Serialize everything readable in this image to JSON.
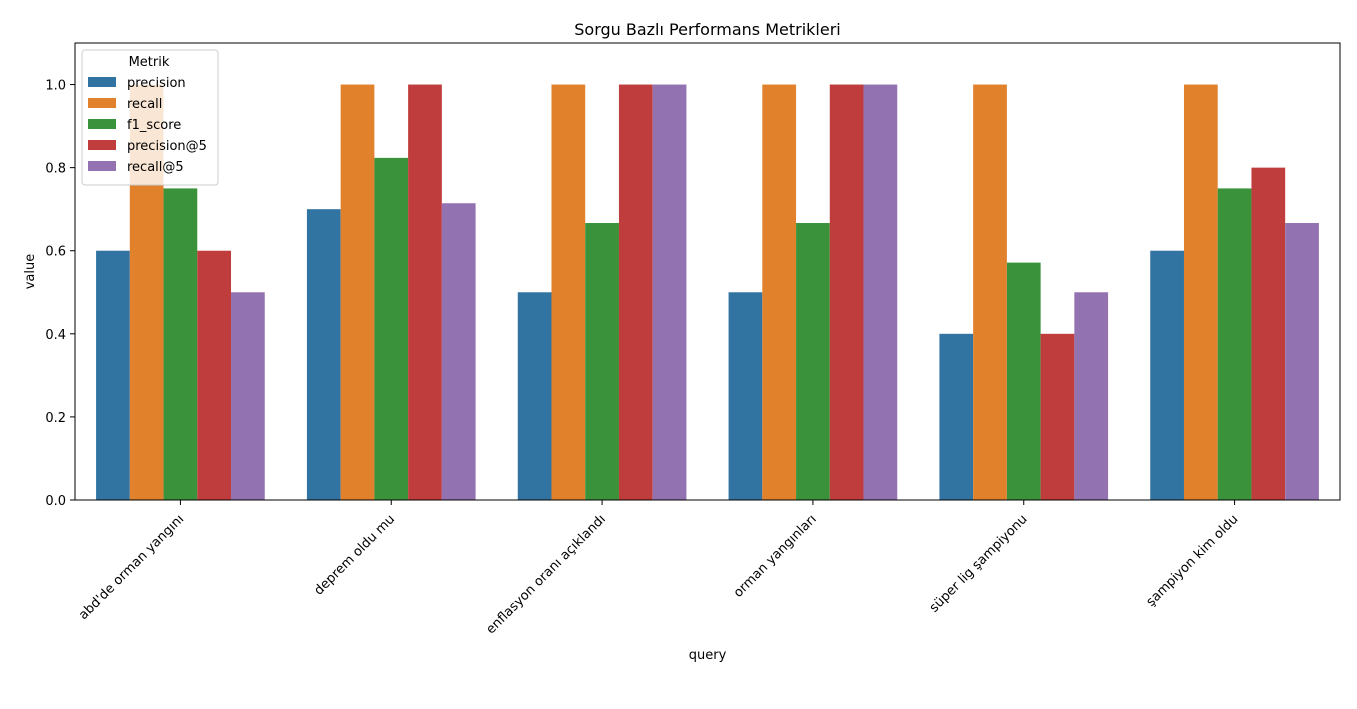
{
  "chart_data": {
    "type": "bar",
    "title": "Sorgu Bazlı Performans Metrikleri",
    "xlabel": "query",
    "ylabel": "value",
    "ylim": [
      0,
      1.1
    ],
    "yticks": [
      "0.0",
      "0.2",
      "0.4",
      "0.6",
      "0.8",
      "1.0"
    ],
    "categories": [
      "abd'de orman yangını",
      "deprem oldu mu",
      "enflasyon oranı açıklandı",
      "orman yangınları",
      "süper lig şampiyonu",
      "şampiyon kim oldu"
    ],
    "series": [
      {
        "name": "precision",
        "color": "#3274a1",
        "values": [
          0.6,
          0.7,
          0.5,
          0.5,
          0.4,
          0.6
        ]
      },
      {
        "name": "recall",
        "color": "#e1812c",
        "values": [
          1.0,
          1.0,
          1.0,
          1.0,
          1.0,
          1.0
        ]
      },
      {
        "name": "f1_score",
        "color": "#3a923a",
        "values": [
          0.75,
          0.8235,
          0.6667,
          0.6667,
          0.5714,
          0.75
        ]
      },
      {
        "name": "precision@5",
        "color": "#c03d3e",
        "values": [
          0.6,
          1.0,
          1.0,
          1.0,
          0.4,
          0.8
        ]
      },
      {
        "name": "recall@5",
        "color": "#9372b2",
        "values": [
          0.5,
          0.7143,
          1.0,
          1.0,
          0.5,
          0.6667
        ]
      }
    ],
    "legend": {
      "title": "Metrik",
      "placement": "top-left"
    },
    "grid": false
  }
}
